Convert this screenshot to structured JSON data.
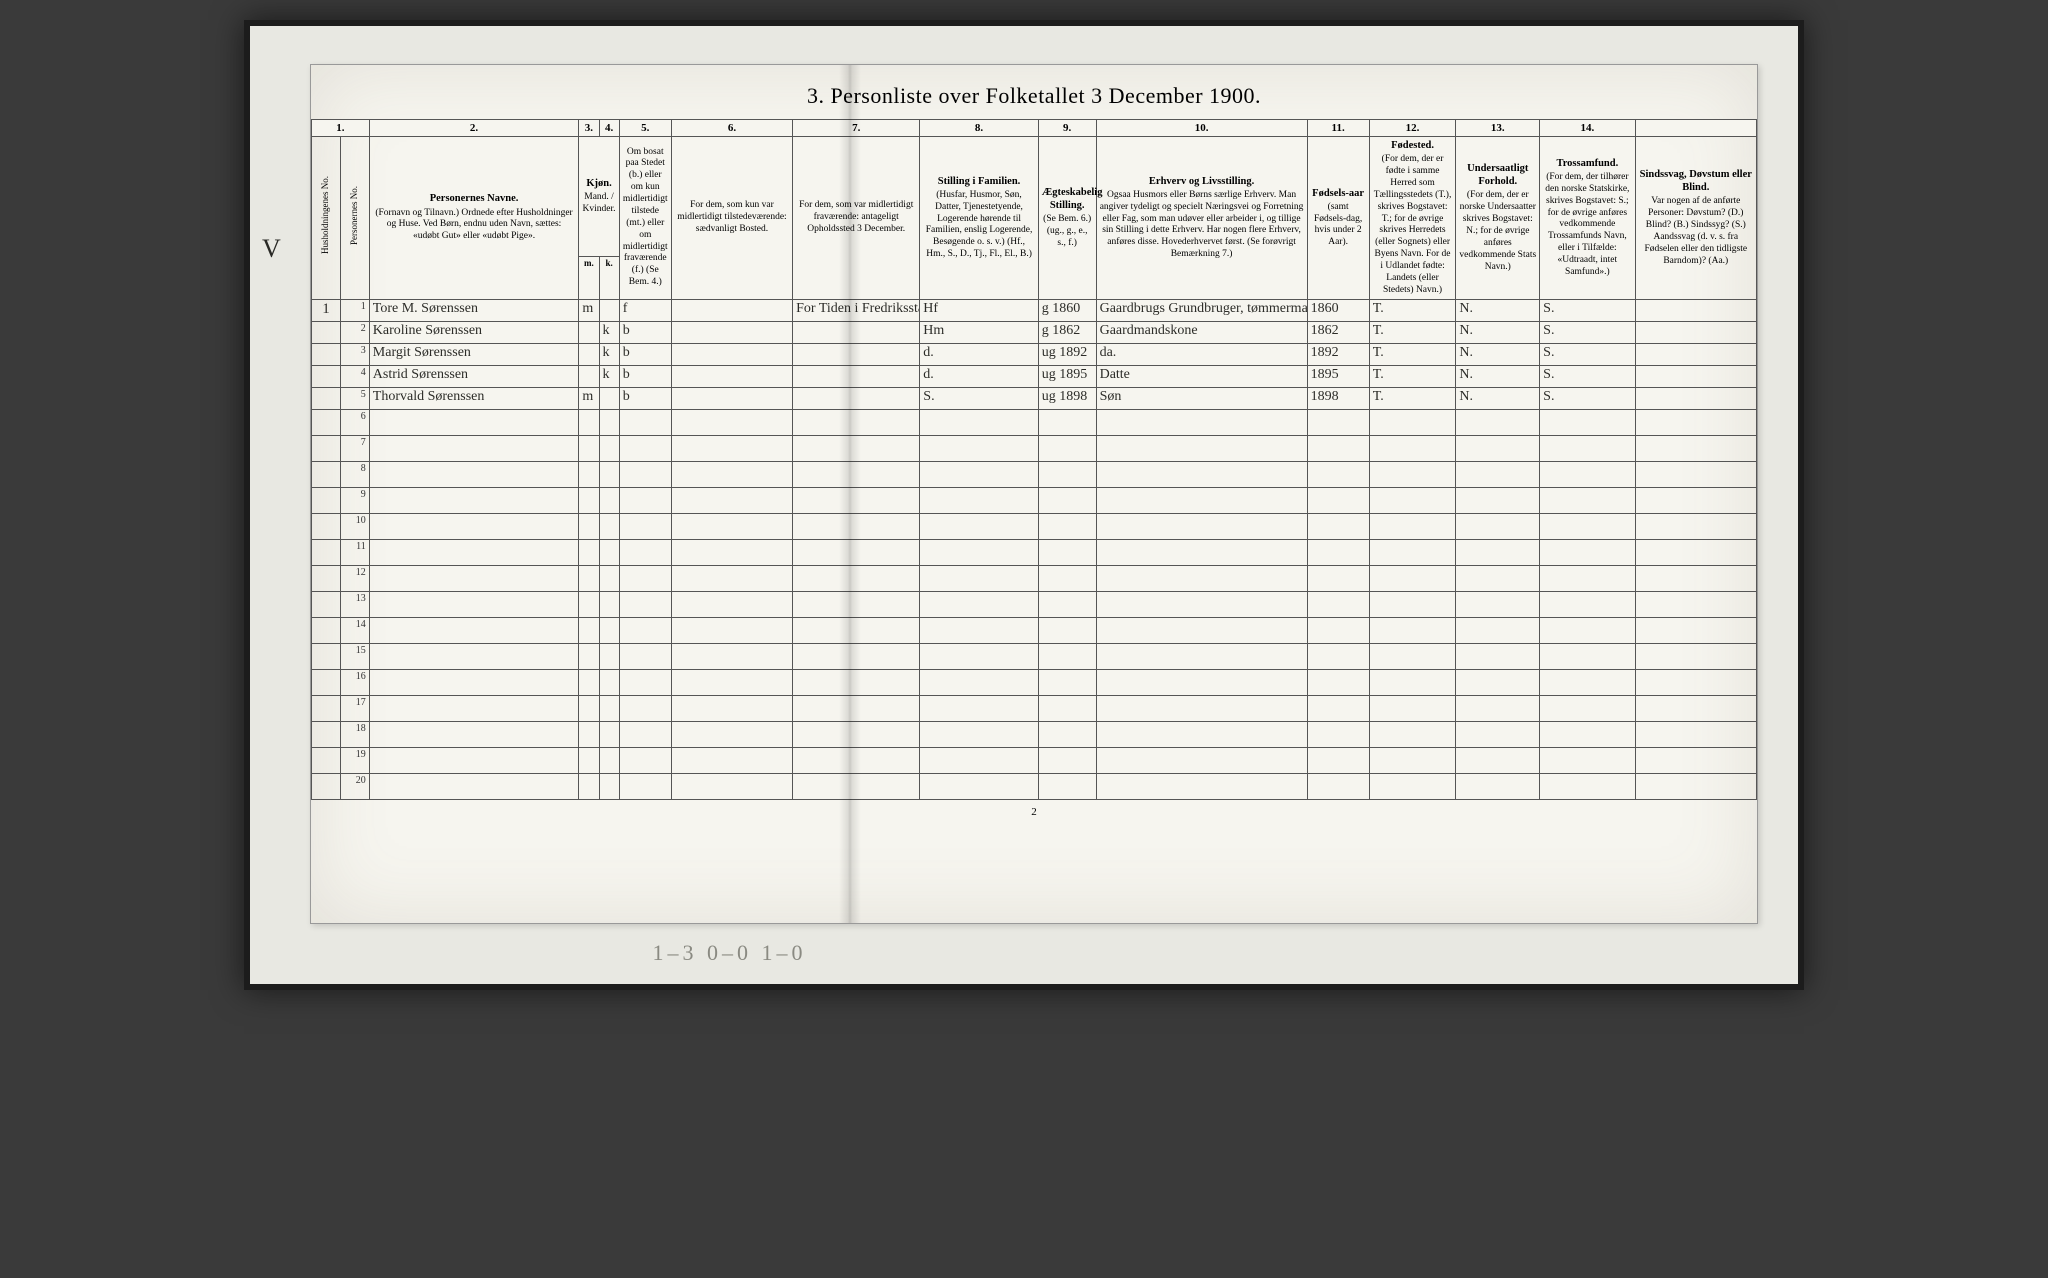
{
  "title": "3.  Personliste over Folketallet 3 December 1900.",
  "page_footer": "2",
  "pencil_note": "1–3   0–0   1–0",
  "margin_vmark": "V",
  "col_numbers": [
    "1.",
    "2.",
    "3.",
    "4.",
    "5.",
    "6.",
    "7.",
    "8.",
    "9.",
    "10.",
    "11.",
    "12.",
    "13.",
    "14."
  ],
  "headers": {
    "hh": "Husholdningenes No.",
    "pn": "Personernes No.",
    "name": {
      "main": "Personernes Navne.",
      "sub": "(Fornavn og Tilnavn.)\nOrdnede efter Husholdninger og Huse.\nVed Børn, endnu uden Navn, sættes: «udøbt Gut» eller «udøbt Pige»."
    },
    "sex": "Kjøn.",
    "sex_m": "Mand.",
    "sex_k": "Kvinder.",
    "sex_mk_m": "m.",
    "sex_mk_k": "k.",
    "res": {
      "main": "",
      "sub": "Om bosat paa Stedet (b.) eller om kun midlertidigt tilstede (mt.) eller om midlertidigt fraværende (f.)\n(Se Bem. 4.)"
    },
    "tmp": {
      "main": "",
      "sub": "For dem, som kun var midlertidigt tilstedeværende:\nsædvanligt Bosted."
    },
    "abs": {
      "main": "",
      "sub": "For dem, som var midlertidigt fraværende:\nantageligt Opholdssted 3 December."
    },
    "fam": {
      "main": "Stilling i Familien.",
      "sub": "(Husfar, Husmor, Søn, Datter, Tjenestetyende, Logerende hørende til Familien, enslig Logerende, Besøgende o. s. v.)\n(Hf., Hm., S., D., Tj., Fl., El., B.)"
    },
    "mar": {
      "main": "Ægteskabelig Stilling.",
      "sub": "(Se Bem. 6.)\n(ug., g., e., s., f.)"
    },
    "occ": {
      "main": "Erhverv og Livsstilling.",
      "sub": "Ogsaa Husmors eller Børns særlige Erhverv.\nMan angiver tydeligt og specielt Næringsvei og Forretning eller Fag, som man udøver eller arbeider i, og tillige sin Stilling i dette Erhverv.\nHar nogen flere Erhverv, anføres disse. Hovederhvervet først.\n(Se forøvrigt Bemærkning 7.)"
    },
    "birth": {
      "main": "Fødsels-aar",
      "sub": "(samt Fødsels-dag, hvis under 2 Aar)."
    },
    "bp": {
      "main": "Fødested.",
      "sub": "(For dem, der er fødte i samme Herred som Tællingsstedets (T.), skrives Bogstavet: T.; for de øvrige skrives Herredets (eller Sognets) eller Byens Navn. For de i Udlandet fødte: Landets (eller Stedets) Navn.)"
    },
    "nat": {
      "main": "Undersaatligt Forhold.",
      "sub": "(For dem, der er norske Undersaatter skrives Bogstavet: N.; for de øvrige anføres vedkommende Stats Navn.)"
    },
    "rel": {
      "main": "Trossamfund.",
      "sub": "(For dem, der tilhører den norske Statskirke, skrives Bogstavet: S.; for de øvrige anføres vedkommende Trossamfunds Navn, eller i Tilfælde: «Udtraadt, intet Samfund».)"
    },
    "dis": {
      "main": "Sindssvag, Døvstum eller Blind.",
      "sub": "Var nogen af de anførte Personer:\nDøvstum? (D.)\nBlind? (B.)\nSindssyg? (S.)\nAandssvag (d. v. s. fra Fødselen eller den tidligste Barndom)? (Aa.)"
    }
  },
  "rows": [
    {
      "hh": "1",
      "pn": "1",
      "name": "Tore M. Sørenssen",
      "m": "m",
      "k": "",
      "res": "f",
      "tmp": "",
      "abs": "For Tiden i Fredriksstad by Smaalne",
      "fam": "Hf",
      "mar": "g 1860",
      "occ": "Gaardbrugs Grundbruger, tømmermand betri",
      "birth": "1860",
      "bp": "T.",
      "nat": "N.",
      "rel": "S.",
      "dis": ""
    },
    {
      "hh": "",
      "pn": "2",
      "name": "Karoline Sørenssen",
      "m": "",
      "k": "k",
      "res": "b",
      "tmp": "",
      "abs": "",
      "fam": "Hm",
      "mar": "g 1862",
      "occ": "Gaardmandskone",
      "birth": "1862",
      "bp": "T.",
      "nat": "N.",
      "rel": "S.",
      "dis": ""
    },
    {
      "hh": "",
      "pn": "3",
      "name": "Margit Sørenssen",
      "m": "",
      "k": "k",
      "res": "b",
      "tmp": "",
      "abs": "",
      "fam": "d.",
      "mar": "ug 1892",
      "occ": "da.",
      "birth": "1892",
      "bp": "T.",
      "nat": "N.",
      "rel": "S.",
      "dis": ""
    },
    {
      "hh": "",
      "pn": "4",
      "name": "Astrid Sørenssen",
      "m": "",
      "k": "k",
      "res": "b",
      "tmp": "",
      "abs": "",
      "fam": "d.",
      "mar": "ug 1895",
      "occ": "Datte",
      "birth": "1895",
      "bp": "T.",
      "nat": "N.",
      "rel": "S.",
      "dis": ""
    },
    {
      "hh": "",
      "pn": "5",
      "name": "Thorvald Sørenssen",
      "m": "m",
      "k": "",
      "res": "b",
      "tmp": "",
      "abs": "",
      "fam": "S.",
      "mar": "ug 1898",
      "occ": "Søn",
      "birth": "1898",
      "bp": "T.",
      "nat": "N.",
      "rel": "S.",
      "dis": ""
    }
  ],
  "blank_row_start": 6,
  "blank_row_end": 20,
  "style": {
    "bg_outer": "#3a3a3a",
    "paper": "#f6f5ef",
    "ink": "#2c2c28",
    "rule": "#555"
  }
}
